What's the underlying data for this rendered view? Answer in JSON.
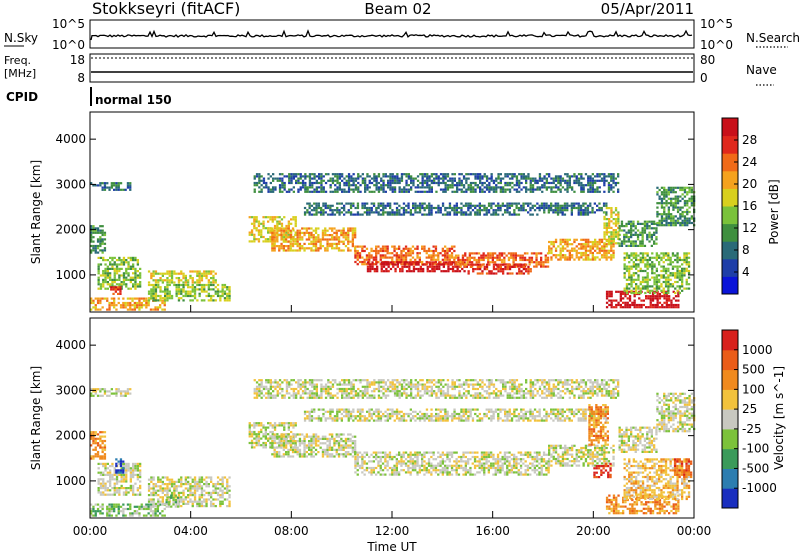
{
  "header": {
    "title": "Stokkseyri (fitACF)",
    "beam": "Beam 02",
    "date": "05/Apr/2011"
  },
  "status_panels": {
    "nsky_label": "N.Sky",
    "nsky_ticks": [
      "10^5",
      "10^0"
    ],
    "nsearch_label": "N.Search",
    "nsearch_ticks": [
      "10^5",
      "10^0"
    ],
    "freq_label_line1": "Freq.",
    "freq_label_line2": "[MHz]",
    "freq_ticks": [
      "18",
      "8"
    ],
    "nave_label": "Nave",
    "nave_ticks": [
      "80",
      "0"
    ],
    "cpid_label": "CPID",
    "cpid_value": "normal 150"
  },
  "chart_data": [
    {
      "type": "heatmap",
      "name": "power",
      "ylabel": "Slant Range [km]",
      "xlabel": "",
      "x_ticks": [
        "00:00",
        "04:00",
        "08:00",
        "12:00",
        "16:00",
        "20:00",
        "00:00"
      ],
      "y_ticks": [
        1000,
        2000,
        3000,
        4000
      ],
      "xlim_hours": [
        0,
        24
      ],
      "ylim_km": [
        180,
        4600
      ],
      "colorbar": {
        "label": "Power [dB]",
        "ticks": [
          "28",
          "24",
          "20",
          "16",
          "12",
          "8",
          "4"
        ],
        "range": [
          0,
          30
        ],
        "colors": [
          "#0a14d8",
          "#1e3ea8",
          "#2a6a78",
          "#3f8f3f",
          "#7ac23a",
          "#d8d01e",
          "#f5a21e",
          "#f06a18",
          "#e0281c",
          "#c8101a"
        ]
      },
      "bands": [
        {
          "h0": 0.0,
          "h1": 1.6,
          "r0": 2900,
          "r1": 3050,
          "level": 2
        },
        {
          "h0": 0.0,
          "h1": 0.6,
          "r0": 1500,
          "r1": 2100,
          "level": 3
        },
        {
          "h0": 0.3,
          "h1": 2.0,
          "r0": 700,
          "r1": 1400,
          "level": 4
        },
        {
          "h0": 0.0,
          "h1": 3.0,
          "r0": 250,
          "r1": 500,
          "level": 6
        },
        {
          "h0": 0.8,
          "h1": 1.2,
          "r0": 600,
          "r1": 750,
          "level": 8
        },
        {
          "h0": 2.3,
          "h1": 5.0,
          "r0": 850,
          "r1": 1100,
          "level": 5
        },
        {
          "h0": 2.3,
          "h1": 5.5,
          "r0": 450,
          "r1": 800,
          "level": 4
        },
        {
          "h0": 6.3,
          "h1": 8.2,
          "r0": 1750,
          "r1": 2300,
          "level": 5
        },
        {
          "h0": 7.2,
          "h1": 10.5,
          "r0": 1550,
          "r1": 2050,
          "level": 6
        },
        {
          "h0": 10.5,
          "h1": 14.5,
          "r0": 1250,
          "r1": 1650,
          "level": 7
        },
        {
          "h0": 11.0,
          "h1": 15.0,
          "r0": 1100,
          "r1": 1300,
          "level": 9
        },
        {
          "h0": 14.5,
          "h1": 18.2,
          "r0": 1200,
          "r1": 1500,
          "level": 7
        },
        {
          "h0": 15.0,
          "h1": 17.5,
          "r0": 1050,
          "r1": 1250,
          "level": 8
        },
        {
          "h0": 18.2,
          "h1": 20.8,
          "r0": 1350,
          "r1": 1800,
          "level": 6
        },
        {
          "h0": 6.5,
          "h1": 21.0,
          "r0": 2850,
          "r1": 3250,
          "level": 2
        },
        {
          "h0": 8.5,
          "h1": 20.5,
          "r0": 2350,
          "r1": 2600,
          "level": 2
        },
        {
          "h0": 20.4,
          "h1": 21.0,
          "r0": 1700,
          "r1": 2500,
          "level": 5
        },
        {
          "h0": 21.0,
          "h1": 22.5,
          "r0": 1650,
          "r1": 2200,
          "level": 3
        },
        {
          "h0": 22.5,
          "h1": 24.0,
          "r0": 2100,
          "r1": 2950,
          "level": 3
        },
        {
          "h0": 20.5,
          "h1": 23.4,
          "r0": 300,
          "r1": 650,
          "level": 9
        },
        {
          "h0": 21.2,
          "h1": 23.8,
          "r0": 600,
          "r1": 1500,
          "level": 4
        }
      ]
    },
    {
      "type": "heatmap",
      "name": "velocity",
      "ylabel": "Slant Range [km]",
      "xlabel": "Time UT",
      "x_ticks": [
        "00:00",
        "04:00",
        "08:00",
        "12:00",
        "16:00",
        "20:00",
        "00:00"
      ],
      "y_ticks": [
        1000,
        2000,
        3000,
        4000
      ],
      "xlim_hours": [
        0,
        24
      ],
      "ylim_km": [
        180,
        4600
      ],
      "colorbar": {
        "label": "Velocity [m s^-1]",
        "ticks": [
          "1000",
          "500",
          "100",
          "25",
          "-25",
          "-100",
          "-500",
          "-1000"
        ],
        "colors": [
          "#1a2fbf",
          "#2c7db0",
          "#3a9a5a",
          "#7cc23a",
          "#c8c8c0",
          "#f2c23c",
          "#f08a1e",
          "#ea5c18",
          "#d8201c"
        ]
      },
      "bands": [
        {
          "h0": 0.0,
          "h1": 1.6,
          "r0": 2900,
          "r1": 3050,
          "level": 4
        },
        {
          "h0": 0.0,
          "h1": 0.6,
          "r0": 1500,
          "r1": 2100,
          "level": 6
        },
        {
          "h0": 0.3,
          "h1": 2.0,
          "r0": 700,
          "r1": 1400,
          "level": 4
        },
        {
          "h0": 0.0,
          "h1": 3.0,
          "r0": 250,
          "r1": 500,
          "level": 3
        },
        {
          "h0": 1.0,
          "h1": 1.3,
          "r0": 1200,
          "r1": 1500,
          "level": 0
        },
        {
          "h0": 2.3,
          "h1": 5.5,
          "r0": 450,
          "r1": 1100,
          "level": 4
        },
        {
          "h0": 3.0,
          "h1": 3.5,
          "r0": 450,
          "r1": 700,
          "level": 3
        },
        {
          "h0": 6.3,
          "h1": 8.2,
          "r0": 1750,
          "r1": 2300,
          "level": 4
        },
        {
          "h0": 7.2,
          "h1": 10.5,
          "r0": 1550,
          "r1": 2050,
          "level": 4
        },
        {
          "h0": 10.5,
          "h1": 18.2,
          "r0": 1150,
          "r1": 1650,
          "level": 4
        },
        {
          "h0": 18.2,
          "h1": 20.8,
          "r0": 1350,
          "r1": 1800,
          "level": 4
        },
        {
          "h0": 6.5,
          "h1": 21.0,
          "r0": 2850,
          "r1": 3250,
          "level": 4
        },
        {
          "h0": 8.5,
          "h1": 20.5,
          "r0": 2350,
          "r1": 2600,
          "level": 4
        },
        {
          "h0": 20.0,
          "h1": 20.7,
          "r0": 1100,
          "r1": 1400,
          "level": 8
        },
        {
          "h0": 19.8,
          "h1": 20.6,
          "r0": 1800,
          "r1": 2700,
          "level": 6
        },
        {
          "h0": 21.0,
          "h1": 22.5,
          "r0": 1650,
          "r1": 2200,
          "level": 4
        },
        {
          "h0": 22.5,
          "h1": 24.0,
          "r0": 2100,
          "r1": 2950,
          "level": 4
        },
        {
          "h0": 20.5,
          "h1": 23.4,
          "r0": 300,
          "r1": 700,
          "level": 6
        },
        {
          "h0": 21.2,
          "h1": 23.8,
          "r0": 600,
          "r1": 1500,
          "level": 5
        },
        {
          "h0": 23.2,
          "h1": 23.9,
          "r0": 1100,
          "r1": 1500,
          "level": 7
        }
      ]
    }
  ]
}
